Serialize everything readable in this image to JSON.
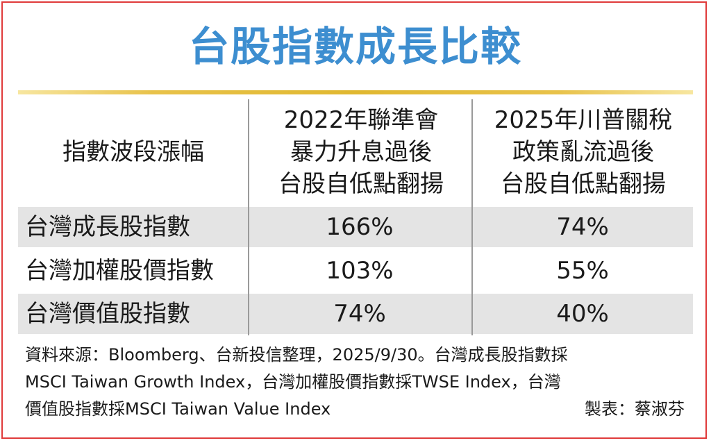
{
  "title": "台股指數成長比較",
  "table": {
    "header": {
      "col0": "指數波段漲幅",
      "col1_lines": [
        "2022年聯準會",
        "暴力升息過後",
        "台股自低點翻揚"
      ],
      "col2_lines": [
        "2025年川普關稅",
        "政策亂流過後",
        "台股自低點翻揚"
      ]
    },
    "rows": [
      {
        "label": "台灣成長股指數",
        "v2022": "166%",
        "v2025": "74%"
      },
      {
        "label": "台灣加權股價指數",
        "v2022": "103%",
        "v2025": "55%"
      },
      {
        "label": "台灣價值股指數",
        "v2022": "74%",
        "v2025": "40%"
      }
    ]
  },
  "notes": {
    "line1": "資料來源：Bloomberg、台新投信整理，2025/9/30。台灣成長股指數採",
    "line2": "MSCI Taiwan Growth Index，台灣加權股價指數採TWSE Index，台灣",
    "line3": "價值股指數採MSCI Taiwan Value Index",
    "credit": "製表：蔡淑芬"
  },
  "colors": {
    "title": "#3d8ed0",
    "border": "#e03a3a",
    "rule": "#e0b830",
    "row_shade": "#e4e4e4"
  }
}
